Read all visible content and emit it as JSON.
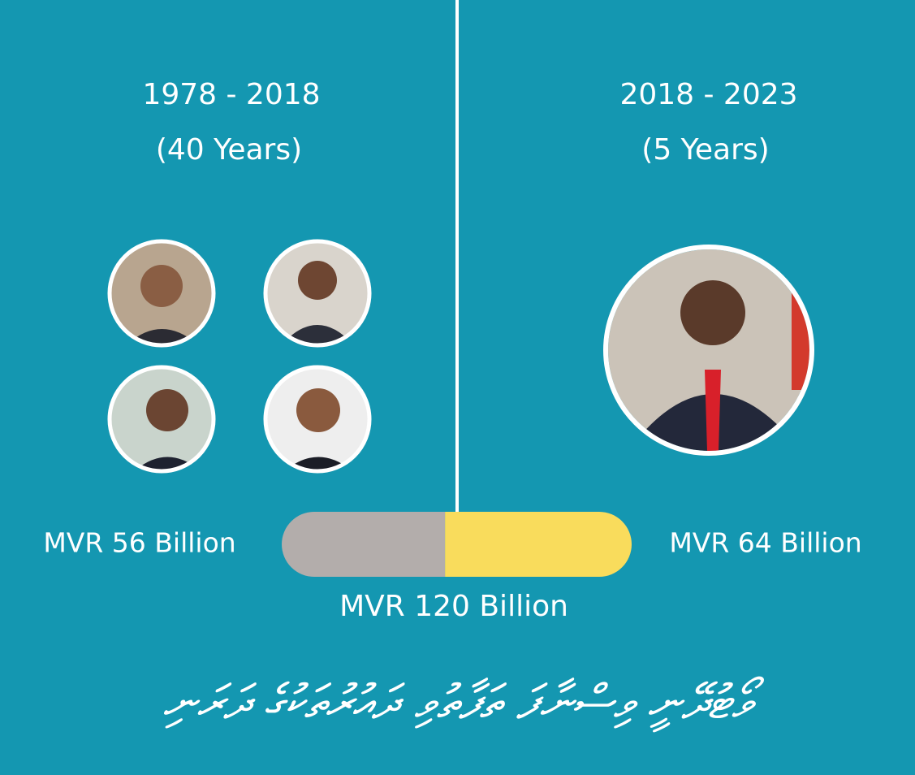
{
  "chart_data": {
    "type": "stacked-bar",
    "categories": [
      "1978 - 2018",
      "2018 - 2023"
    ],
    "periods": [
      "(40 Years)",
      "(5 Years)"
    ],
    "values": [
      56,
      64
    ],
    "value_labels": [
      "MVR 56 Billion",
      "MVR 64 Billion"
    ],
    "colors": [
      "#b3adab",
      "#f9dc5c"
    ],
    "total_label": "MVR 120 Billion",
    "footer": "ވޯޓުދޭނީ ވިސްނާފަ ތަފާތުވި ދައުރުތަކުގެ ދަރަނި"
  }
}
